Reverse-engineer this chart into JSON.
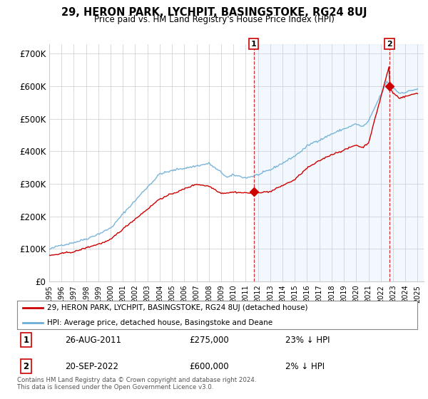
{
  "title": "29, HERON PARK, LYCHPIT, BASINGSTOKE, RG24 8UJ",
  "subtitle": "Price paid vs. HM Land Registry's House Price Index (HPI)",
  "ylabel_ticks": [
    "£0",
    "£100K",
    "£200K",
    "£300K",
    "£400K",
    "£500K",
    "£600K",
    "£700K"
  ],
  "ytick_vals": [
    0,
    100000,
    200000,
    300000,
    400000,
    500000,
    600000,
    700000
  ],
  "ylim": [
    0,
    730000
  ],
  "xlim_start": 1995.0,
  "xlim_end": 2025.5,
  "hpi_color": "#6baed6",
  "hpi_fill_color": "#d6eaf8",
  "price_color": "#cc0000",
  "marker1_date": 2011.65,
  "marker1_price": 275000,
  "marker2_date": 2022.72,
  "marker2_price": 600000,
  "legend_line1": "29, HERON PARK, LYCHPIT, BASINGSTOKE, RG24 8UJ (detached house)",
  "legend_line2": "HPI: Average price, detached house, Basingstoke and Deane",
  "annotation1_num": "1",
  "annotation1_date": "26-AUG-2011",
  "annotation1_price": "£275,000",
  "annotation1_pct": "23% ↓ HPI",
  "annotation2_num": "2",
  "annotation2_date": "20-SEP-2022",
  "annotation2_price": "£600,000",
  "annotation2_pct": "2% ↓ HPI",
  "footnote": "Contains HM Land Registry data © Crown copyright and database right 2024.\nThis data is licensed under the Open Government Licence v3.0.",
  "bg_color": "#ffffff",
  "grid_color": "#cccccc",
  "vline_color": "#cc0000"
}
